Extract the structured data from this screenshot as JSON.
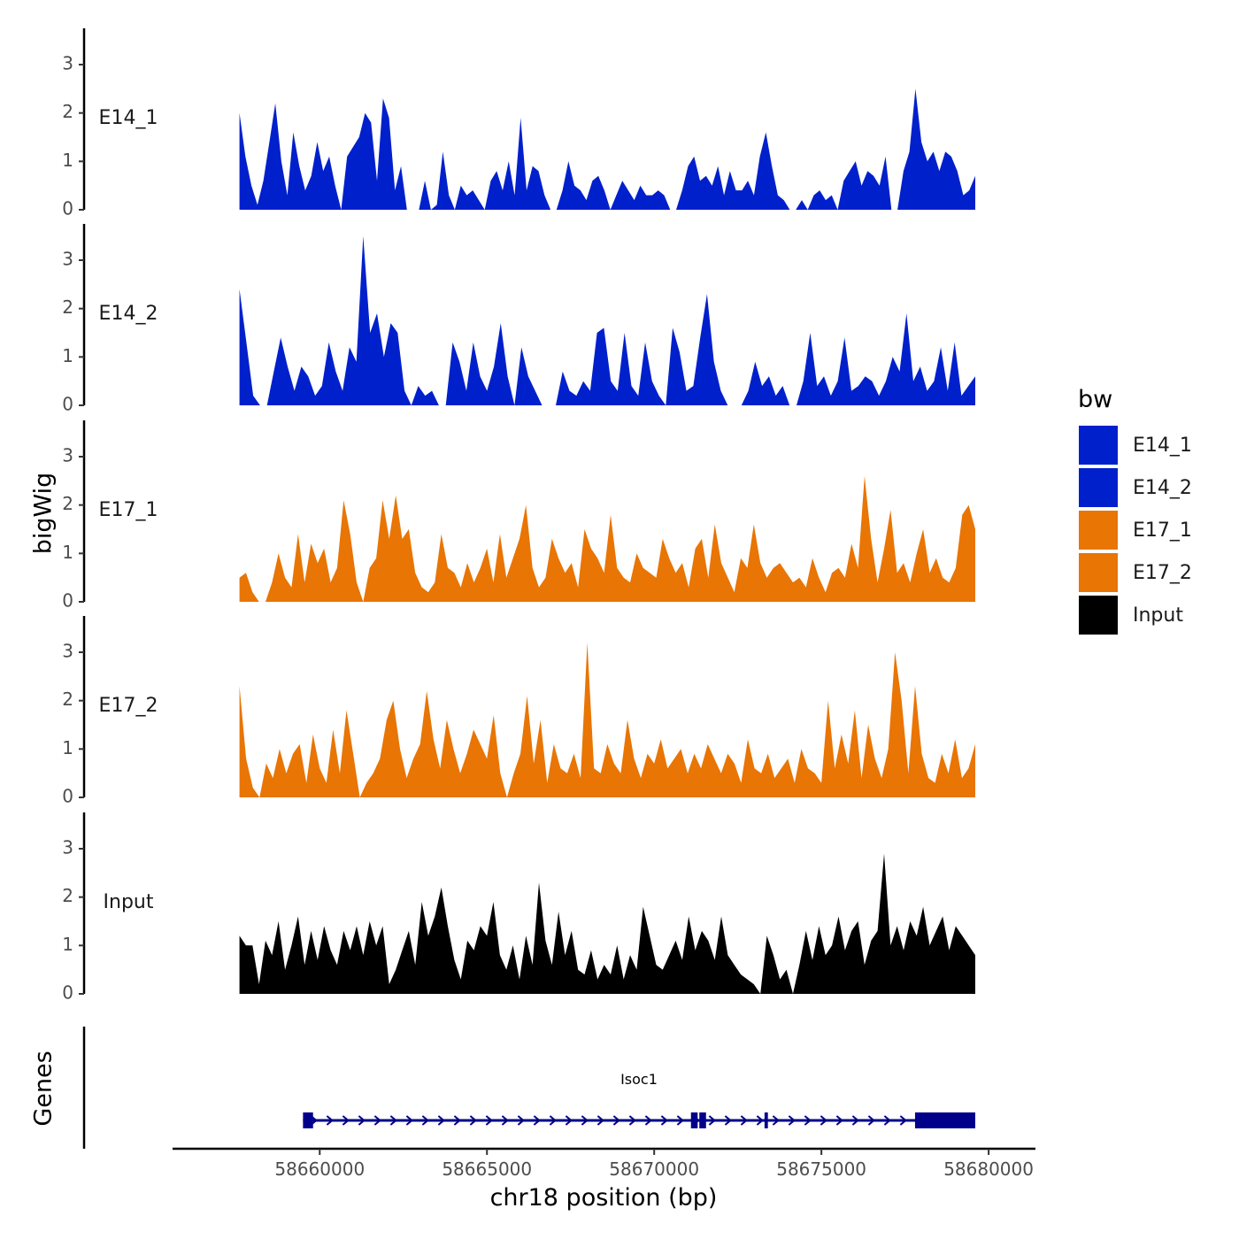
{
  "chart_data": {
    "type": "area",
    "title": "",
    "xlabel": "chr18 position (bp)",
    "ylabel": "bigWig",
    "genes_label": "Genes",
    "xlim": [
      58655600,
      58681400
    ],
    "ylim": [
      0,
      3.75
    ],
    "x_ticks": [
      58660000,
      58665000,
      58670000,
      58675000,
      58680000
    ],
    "x_tick_labels": [
      "58660000",
      "58665000",
      "58670000",
      "58675000",
      "58680000"
    ],
    "y_ticks": [
      0,
      1,
      2,
      3
    ],
    "y_tick_labels": [
      "0",
      "1",
      "2",
      "3"
    ],
    "x_start": 58657600,
    "x_end": 58679600,
    "legend": {
      "title": "bw",
      "position": "right",
      "entries": [
        {
          "label": "E14_1",
          "color": "#0020CC"
        },
        {
          "label": "E14_2",
          "color": "#0020CC"
        },
        {
          "label": "E17_1",
          "color": "#E87504"
        },
        {
          "label": "E17_2",
          "color": "#E87504"
        },
        {
          "label": "Input",
          "color": "#000000"
        }
      ]
    },
    "series": [
      {
        "name": "E14_1",
        "color": "#0020CC",
        "values": [
          2.0,
          1.1,
          0.5,
          0.1,
          0.6,
          1.4,
          2.2,
          1.0,
          0.3,
          1.6,
          0.9,
          0.4,
          0.7,
          1.4,
          0.8,
          1.1,
          0.5,
          0.0,
          1.1,
          1.3,
          1.5,
          2.0,
          1.8,
          0.6,
          2.3,
          1.9,
          0.4,
          0.9,
          0.0,
          0.0,
          0.0,
          0.6,
          0.0,
          0.1,
          1.2,
          0.3,
          0.0,
          0.5,
          0.3,
          0.4,
          0.2,
          0.0,
          0.6,
          0.8,
          0.4,
          1.0,
          0.3,
          1.9,
          0.4,
          0.9,
          0.8,
          0.3,
          0.0,
          0.0,
          0.4,
          1.0,
          0.5,
          0.4,
          0.2,
          0.6,
          0.7,
          0.4,
          0.0,
          0.3,
          0.6,
          0.4,
          0.2,
          0.5,
          0.3,
          0.3,
          0.4,
          0.3,
          0.0,
          0.0,
          0.4,
          0.9,
          1.1,
          0.6,
          0.7,
          0.5,
          0.9,
          0.3,
          0.8,
          0.4,
          0.4,
          0.6,
          0.3,
          1.1,
          1.6,
          0.9,
          0.3,
          0.2,
          0.0,
          0.0,
          0.2,
          0.0,
          0.3,
          0.4,
          0.2,
          0.3,
          0.0,
          0.6,
          0.8,
          1.0,
          0.5,
          0.8,
          0.7,
          0.5,
          1.1,
          0.0,
          0.0,
          0.8,
          1.2,
          2.5,
          1.4,
          1.0,
          1.2,
          0.8,
          1.2,
          1.1,
          0.8,
          0.3,
          0.4,
          0.7
        ]
      },
      {
        "name": "E14_2",
        "color": "#0020CC",
        "values": [
          2.4,
          1.3,
          0.2,
          0.0,
          0.0,
          0.7,
          1.4,
          0.8,
          0.3,
          0.8,
          0.6,
          0.2,
          0.4,
          1.3,
          0.7,
          0.3,
          1.2,
          0.9,
          3.5,
          1.5,
          1.9,
          1.0,
          1.7,
          1.5,
          0.3,
          0.0,
          0.4,
          0.2,
          0.3,
          0.0,
          0.0,
          1.3,
          0.9,
          0.3,
          1.3,
          0.6,
          0.3,
          0.8,
          1.7,
          0.6,
          0.0,
          1.2,
          0.6,
          0.3,
          0.0,
          0.0,
          0.0,
          0.7,
          0.3,
          0.2,
          0.5,
          0.3,
          1.5,
          1.6,
          0.5,
          0.3,
          1.5,
          0.4,
          0.2,
          1.3,
          0.5,
          0.2,
          0.0,
          1.6,
          1.1,
          0.3,
          0.4,
          1.4,
          2.3,
          0.9,
          0.3,
          0.0,
          0.0,
          0.0,
          0.3,
          0.9,
          0.4,
          0.6,
          0.2,
          0.4,
          0.0,
          0.0,
          0.5,
          1.5,
          0.4,
          0.6,
          0.2,
          0.5,
          1.4,
          0.3,
          0.4,
          0.6,
          0.5,
          0.2,
          0.5,
          1.0,
          0.7,
          1.9,
          0.5,
          0.8,
          0.3,
          0.5,
          1.2,
          0.3,
          1.3,
          0.2,
          0.4,
          0.6
        ]
      },
      {
        "name": "E17_1",
        "color": "#E87504",
        "values": [
          0.5,
          0.6,
          0.2,
          0.0,
          0.0,
          0.4,
          1.0,
          0.5,
          0.3,
          1.4,
          0.4,
          1.2,
          0.8,
          1.1,
          0.4,
          0.7,
          2.1,
          1.4,
          0.4,
          0.0,
          0.7,
          0.9,
          2.1,
          1.3,
          2.2,
          1.3,
          1.5,
          0.6,
          0.3,
          0.2,
          0.4,
          1.4,
          0.7,
          0.6,
          0.3,
          0.8,
          0.4,
          0.7,
          1.1,
          0.4,
          1.4,
          0.5,
          0.9,
          1.3,
          2.0,
          0.7,
          0.3,
          0.5,
          1.3,
          0.9,
          0.6,
          0.8,
          0.3,
          1.5,
          1.1,
          0.9,
          0.6,
          1.8,
          0.7,
          0.5,
          0.4,
          1.0,
          0.7,
          0.6,
          0.5,
          1.3,
          0.9,
          0.6,
          0.8,
          0.3,
          1.1,
          1.3,
          0.5,
          1.6,
          0.8,
          0.5,
          0.2,
          0.9,
          0.7,
          1.6,
          0.8,
          0.5,
          0.7,
          0.8,
          0.6,
          0.4,
          0.5,
          0.3,
          0.9,
          0.5,
          0.2,
          0.6,
          0.7,
          0.5,
          1.2,
          0.7,
          2.6,
          1.3,
          0.4,
          1.1,
          1.9,
          0.6,
          0.8,
          0.4,
          1.0,
          1.5,
          0.6,
          0.9,
          0.5,
          0.4,
          0.7,
          1.8,
          2.0,
          1.5
        ]
      },
      {
        "name": "E17_2",
        "color": "#E87504",
        "values": [
          2.3,
          0.8,
          0.2,
          0.0,
          0.7,
          0.4,
          1.0,
          0.5,
          0.9,
          1.1,
          0.3,
          1.3,
          0.6,
          0.3,
          1.4,
          0.5,
          1.8,
          0.9,
          0.0,
          0.3,
          0.5,
          0.8,
          1.6,
          2.0,
          1.0,
          0.4,
          0.8,
          1.1,
          2.2,
          1.2,
          0.6,
          1.6,
          1.0,
          0.5,
          0.9,
          1.4,
          1.1,
          0.8,
          1.7,
          0.5,
          0.0,
          0.5,
          0.9,
          2.1,
          0.7,
          1.6,
          0.3,
          1.1,
          0.6,
          0.5,
          0.9,
          0.4,
          3.2,
          0.6,
          0.5,
          1.1,
          0.7,
          0.5,
          1.6,
          0.8,
          0.4,
          0.9,
          0.7,
          1.2,
          0.6,
          0.8,
          1.0,
          0.5,
          0.9,
          0.6,
          1.1,
          0.8,
          0.5,
          0.9,
          0.7,
          0.3,
          1.2,
          0.6,
          0.5,
          0.9,
          0.4,
          0.6,
          0.8,
          0.3,
          1.0,
          0.6,
          0.5,
          0.3,
          2.0,
          0.6,
          1.3,
          0.7,
          1.8,
          0.4,
          1.5,
          0.8,
          0.4,
          1.0,
          3.0,
          2.0,
          0.5,
          2.3,
          0.9,
          0.4,
          0.3,
          0.9,
          0.5,
          1.2,
          0.4,
          0.6,
          1.1
        ]
      },
      {
        "name": "Input",
        "color": "#000000",
        "values": [
          1.2,
          1.0,
          1.0,
          0.2,
          1.1,
          0.8,
          1.5,
          0.5,
          1.0,
          1.6,
          0.6,
          1.3,
          0.7,
          1.4,
          0.9,
          0.6,
          1.3,
          0.9,
          1.4,
          0.8,
          1.5,
          1.0,
          1.4,
          0.2,
          0.5,
          0.9,
          1.3,
          0.6,
          1.9,
          1.2,
          1.6,
          2.2,
          1.4,
          0.7,
          0.3,
          1.1,
          0.9,
          1.4,
          1.2,
          1.9,
          0.8,
          0.5,
          1.0,
          0.3,
          1.2,
          0.6,
          2.3,
          1.1,
          0.6,
          1.7,
          0.8,
          1.3,
          0.5,
          0.4,
          0.9,
          0.3,
          0.6,
          0.4,
          1.0,
          0.3,
          0.8,
          0.5,
          1.8,
          1.2,
          0.6,
          0.5,
          0.8,
          1.1,
          0.7,
          1.6,
          0.9,
          1.3,
          1.1,
          0.7,
          1.6,
          0.8,
          0.6,
          0.4,
          0.3,
          0.2,
          0.0,
          1.2,
          0.8,
          0.3,
          0.5,
          0.0,
          0.6,
          1.3,
          0.7,
          1.4,
          0.8,
          1.0,
          1.6,
          0.9,
          1.3,
          1.5,
          0.6,
          1.1,
          1.3,
          2.9,
          1.0,
          1.4,
          0.9,
          1.5,
          1.2,
          1.8,
          1.0,
          1.3,
          1.6,
          0.9,
          1.4,
          1.2,
          1.0,
          0.8
        ]
      }
    ],
    "gene": {
      "name": "Isoc1",
      "strand": "+",
      "start": 58659500,
      "end": 58679600,
      "exons": [
        [
          58659500,
          58659800
        ],
        [
          58671100,
          58671300
        ],
        [
          58671350,
          58671550
        ],
        [
          58673300,
          58673400
        ],
        [
          58677800,
          58679600
        ]
      ]
    }
  }
}
